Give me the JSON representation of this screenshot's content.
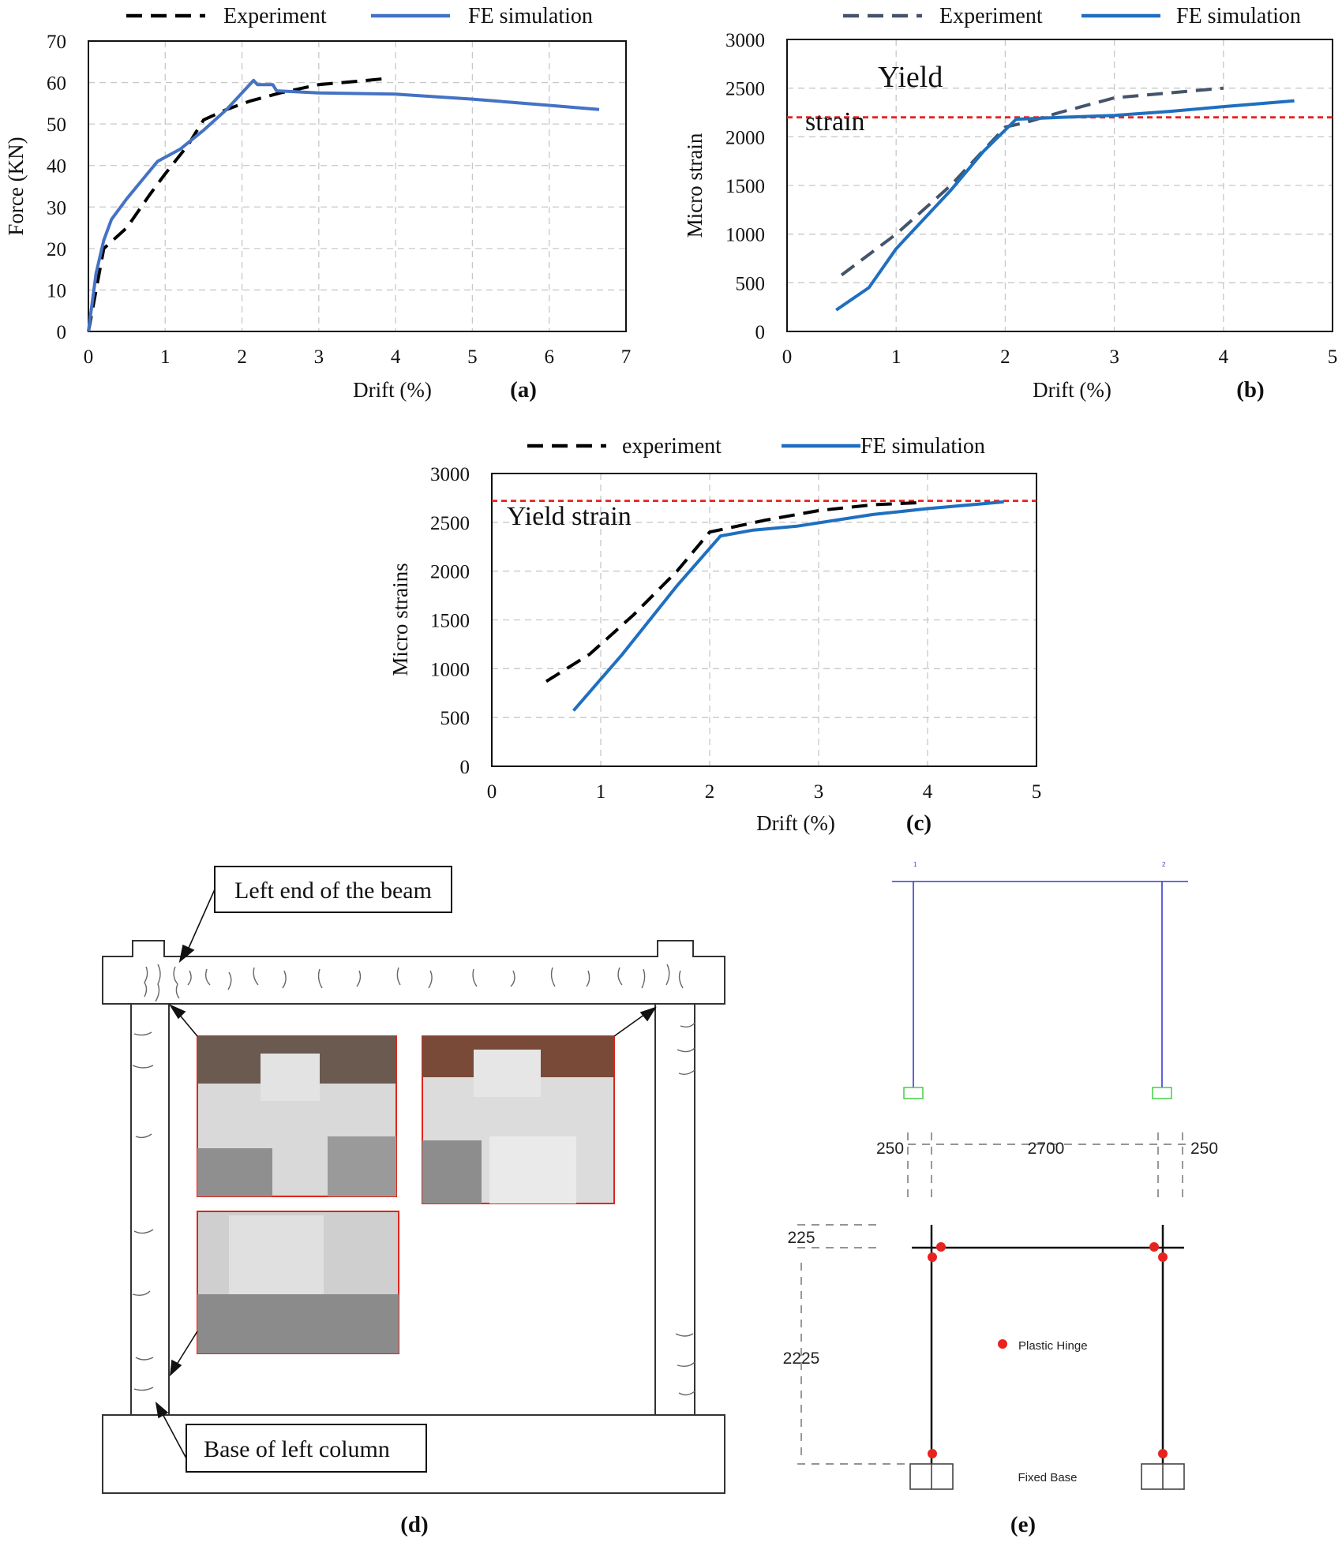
{
  "chart_data": [
    {
      "id": "a",
      "type": "line",
      "panel_label": "(a)",
      "xlabel": "Drift (%)",
      "ylabel": "Force (KN)",
      "xlim": [
        0,
        7
      ],
      "ylim": [
        0,
        70
      ],
      "xticks": [
        0,
        1,
        2,
        3,
        4,
        5,
        6,
        7
      ],
      "yticks": [
        0,
        10,
        20,
        30,
        40,
        50,
        60,
        70
      ],
      "grid": true,
      "legend_position": "top",
      "series": [
        {
          "name": "Experiment",
          "style": "dashed",
          "color": "#000000",
          "x": [
            0,
            0.2,
            0.5,
            0.8,
            1.0,
            1.3,
            1.5,
            1.8,
            2.1,
            2.5,
            3.0,
            3.5,
            3.9
          ],
          "y": [
            0,
            20,
            25,
            33,
            38,
            45,
            51,
            53.5,
            55.5,
            57.5,
            59.5,
            60.3,
            61
          ]
        },
        {
          "name": "FE simulation",
          "style": "solid",
          "color": "#4472C4",
          "x": [
            0,
            0.1,
            0.2,
            0.3,
            0.5,
            0.7,
            0.9,
            1.0,
            1.2,
            1.5,
            1.8,
            2.0,
            2.15,
            2.2,
            2.4,
            2.45,
            3.0,
            4.0,
            5.0,
            6.0,
            6.65
          ],
          "y": [
            0,
            14,
            22,
            27,
            32,
            36.5,
            41,
            42,
            44,
            48.5,
            53.5,
            57.5,
            60.5,
            59.5,
            59.5,
            58,
            57.5,
            57.2,
            56,
            54.5,
            53.5
          ]
        }
      ]
    },
    {
      "id": "b",
      "type": "line",
      "panel_label": "(b)",
      "xlabel": "Drift (%)",
      "ylabel": "Micro strain",
      "xlim": [
        0,
        5
      ],
      "ylim": [
        0,
        3000
      ],
      "xticks": [
        0,
        1,
        2,
        3,
        4,
        5
      ],
      "yticks": [
        0,
        500,
        1000,
        1500,
        2000,
        2500,
        3000
      ],
      "grid": true,
      "legend_position": "top",
      "reference_line": {
        "y": 2200,
        "color": "#E8231F",
        "label_lines": [
          "Yield",
          "strain"
        ]
      },
      "series": [
        {
          "name": "Experiment",
          "style": "dashed",
          "color": "#44546A",
          "x": [
            0.5,
            1.0,
            1.5,
            2.0,
            2.2,
            2.5,
            3.0,
            3.5,
            4.0
          ],
          "y": [
            580,
            1000,
            1500,
            2100,
            2150,
            2250,
            2400,
            2450,
            2500
          ]
        },
        {
          "name": "FE simulation",
          "style": "solid",
          "color": "#1F6FBF",
          "x": [
            0.45,
            0.75,
            1.0,
            1.5,
            1.8,
            2.1,
            2.5,
            3.0,
            3.5,
            4.0,
            4.65
          ],
          "y": [
            220,
            450,
            850,
            1450,
            1850,
            2180,
            2200,
            2220,
            2260,
            2310,
            2370
          ]
        }
      ]
    },
    {
      "id": "c",
      "type": "line",
      "panel_label": "(c)",
      "xlabel": "Drift (%)",
      "ylabel": "Micro strains",
      "xlim": [
        0,
        5
      ],
      "ylim": [
        0,
        3000
      ],
      "xticks": [
        0,
        1,
        2,
        3,
        4,
        5
      ],
      "yticks": [
        0,
        500,
        1000,
        1500,
        2000,
        2500,
        3000
      ],
      "grid": true,
      "legend_position": "top",
      "reference_line": {
        "y": 2720,
        "color": "#E8231F",
        "label_lines": [
          "Yield strain"
        ]
      },
      "series": [
        {
          "name": "experiment",
          "style": "dashed",
          "color": "#000000",
          "x": [
            0.5,
            0.9,
            1.3,
            1.7,
            2.0,
            2.5,
            3.0,
            3.5,
            3.9
          ],
          "y": [
            870,
            1150,
            1550,
            2000,
            2400,
            2520,
            2620,
            2680,
            2700
          ]
        },
        {
          "name": "FE simulation",
          "style": "solid",
          "color": "#1F6FBF",
          "x": [
            0.75,
            1.2,
            1.7,
            2.1,
            2.4,
            2.8,
            3.5,
            4.0,
            4.7
          ],
          "y": [
            570,
            1150,
            1850,
            2360,
            2420,
            2460,
            2580,
            2640,
            2710
          ]
        }
      ]
    }
  ],
  "diagram_d": {
    "panel_label": "(d)",
    "callout_top": "Left end of the beam",
    "callout_bottom": "Base of left column"
  },
  "diagram_e": {
    "panel_label": "(e)",
    "dim_left": "250",
    "dim_mid": "2700",
    "dim_right": "250",
    "dim_top": "225",
    "dim_height": "2225",
    "legend_hinge": "Plastic Hinge",
    "base_label": "Fixed Base",
    "node_labels": [
      "1",
      "2"
    ]
  }
}
